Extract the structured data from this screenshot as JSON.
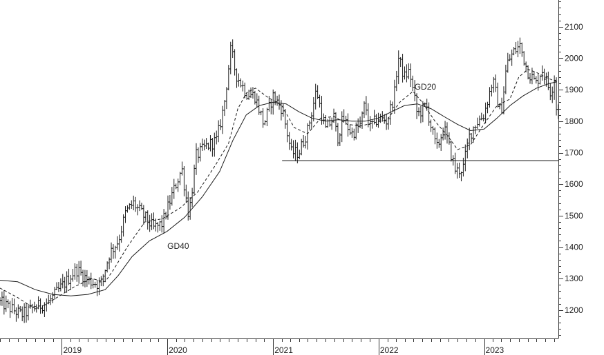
{
  "chart_data": {
    "type": "ohlc-bar",
    "title": "",
    "xlabel": "",
    "ylabel": "",
    "ylim": [
      1110,
      2185
    ],
    "y_axis_position": "right",
    "grid": false,
    "y_ticks": [
      1200,
      1300,
      1400,
      1500,
      1600,
      1700,
      1800,
      1900,
      2000,
      2100
    ],
    "x_ticks": [
      "2019",
      "2020",
      "2021",
      "2022",
      "2023"
    ],
    "x_range": [
      "2018-06-01",
      "2023-09-15"
    ],
    "x_tick_dates": [
      "2019-01-01",
      "2020-01-01",
      "2021-01-01",
      "2022-01-01",
      "2023-01-01"
    ],
    "price_keypoints": [
      [
        "2018-06-01",
        1225
      ],
      [
        "2018-08-15",
        1185
      ],
      [
        "2018-10-01",
        1210
      ],
      [
        "2018-11-15",
        1225
      ],
      [
        "2019-01-15",
        1290
      ],
      [
        "2019-02-20",
        1330
      ],
      [
        "2019-04-01",
        1295
      ],
      [
        "2019-05-15",
        1280
      ],
      [
        "2019-06-15",
        1380
      ],
      [
        "2019-07-15",
        1420
      ],
      [
        "2019-08-10",
        1510
      ],
      [
        "2019-09-05",
        1540
      ],
      [
        "2019-10-10",
        1500
      ],
      [
        "2019-11-15",
        1460
      ],
      [
        "2019-12-15",
        1475
      ],
      [
        "2020-01-15",
        1560
      ],
      [
        "2020-02-20",
        1650
      ],
      [
        "2020-03-15",
        1500
      ],
      [
        "2020-04-10",
        1690
      ],
      [
        "2020-05-15",
        1720
      ],
      [
        "2020-06-20",
        1740
      ],
      [
        "2020-07-15",
        1850
      ],
      [
        "2020-08-08",
        2030
      ],
      [
        "2020-08-25",
        1950
      ],
      [
        "2020-09-30",
        1890
      ],
      [
        "2020-10-30",
        1880
      ],
      [
        "2020-11-30",
        1790
      ],
      [
        "2020-12-31",
        1880
      ],
      [
        "2021-02-01",
        1840
      ],
      [
        "2021-03-05",
        1700
      ],
      [
        "2021-03-31",
        1700
      ],
      [
        "2021-04-30",
        1770
      ],
      [
        "2021-05-31",
        1900
      ],
      [
        "2021-06-30",
        1770
      ],
      [
        "2021-07-31",
        1815
      ],
      [
        "2021-08-10",
        1740
      ],
      [
        "2021-08-31",
        1810
      ],
      [
        "2021-09-30",
        1760
      ],
      [
        "2021-10-31",
        1790
      ],
      [
        "2021-11-15",
        1860
      ],
      [
        "2021-11-30",
        1780
      ],
      [
        "2021-12-31",
        1810
      ],
      [
        "2022-01-31",
        1800
      ],
      [
        "2022-02-28",
        1900
      ],
      [
        "2022-03-08",
        2010
      ],
      [
        "2022-03-31",
        1940
      ],
      [
        "2022-04-18",
        1960
      ],
      [
        "2022-05-15",
        1820
      ],
      [
        "2022-06-15",
        1850
      ],
      [
        "2022-07-20",
        1710
      ],
      [
        "2022-08-15",
        1780
      ],
      [
        "2022-09-25",
        1640
      ],
      [
        "2022-10-20",
        1650
      ],
      [
        "2022-11-10",
        1750
      ],
      [
        "2022-11-30",
        1790
      ],
      [
        "2022-12-31",
        1820
      ],
      [
        "2023-01-31",
        1930
      ],
      [
        "2023-02-28",
        1820
      ],
      [
        "2023-03-20",
        1980
      ],
      [
        "2023-04-13",
        2020
      ],
      [
        "2023-05-05",
        2040
      ],
      [
        "2023-05-31",
        1960
      ],
      [
        "2023-06-30",
        1920
      ],
      [
        "2023-07-20",
        1965
      ],
      [
        "2023-08-20",
        1890
      ],
      [
        "2023-08-31",
        1935
      ],
      [
        "2023-09-01",
        1940
      ],
      [
        "2023-09-05",
        1860
      ],
      [
        "2023-09-10",
        1830
      ]
    ],
    "series": [
      {
        "name": "GD20",
        "style": "dashed",
        "points": [
          [
            "2018-06-01",
            1270
          ],
          [
            "2018-08-01",
            1240
          ],
          [
            "2018-09-20",
            1210
          ],
          [
            "2018-11-01",
            1215
          ],
          [
            "2018-12-15",
            1240
          ],
          [
            "2019-02-15",
            1275
          ],
          [
            "2019-04-15",
            1300
          ],
          [
            "2019-05-31",
            1290
          ],
          [
            "2019-06-30",
            1330
          ],
          [
            "2019-08-15",
            1400
          ],
          [
            "2019-10-15",
            1480
          ],
          [
            "2019-12-15",
            1490
          ],
          [
            "2020-02-15",
            1525
          ],
          [
            "2020-04-15",
            1575
          ],
          [
            "2020-06-15",
            1660
          ],
          [
            "2020-07-31",
            1730
          ],
          [
            "2020-09-01",
            1840
          ],
          [
            "2020-10-01",
            1890
          ],
          [
            "2020-11-01",
            1905
          ],
          [
            "2020-12-15",
            1875
          ],
          [
            "2021-01-31",
            1850
          ],
          [
            "2021-03-15",
            1780
          ],
          [
            "2021-04-30",
            1760
          ],
          [
            "2021-06-15",
            1810
          ],
          [
            "2021-07-31",
            1815
          ],
          [
            "2021-09-15",
            1790
          ],
          [
            "2021-11-01",
            1785
          ],
          [
            "2021-12-15",
            1795
          ],
          [
            "2022-01-31",
            1805
          ],
          [
            "2022-03-15",
            1860
          ],
          [
            "2022-04-30",
            1895
          ],
          [
            "2022-06-01",
            1860
          ],
          [
            "2022-07-15",
            1800
          ],
          [
            "2022-08-31",
            1750
          ],
          [
            "2022-10-01",
            1710
          ],
          [
            "2022-11-15",
            1725
          ],
          [
            "2022-12-31",
            1790
          ],
          [
            "2023-02-15",
            1850
          ],
          [
            "2023-03-31",
            1870
          ],
          [
            "2023-05-01",
            1940
          ],
          [
            "2023-06-01",
            1965
          ],
          [
            "2023-07-01",
            1955
          ],
          [
            "2023-08-01",
            1940
          ],
          [
            "2023-09-10",
            1925
          ]
        ]
      },
      {
        "name": "GD40",
        "style": "solid",
        "points": [
          [
            "2018-06-01",
            1295
          ],
          [
            "2018-08-01",
            1290
          ],
          [
            "2018-10-01",
            1265
          ],
          [
            "2018-12-01",
            1250
          ],
          [
            "2019-02-01",
            1245
          ],
          [
            "2019-04-01",
            1250
          ],
          [
            "2019-05-31",
            1265
          ],
          [
            "2019-07-15",
            1310
          ],
          [
            "2019-09-01",
            1370
          ],
          [
            "2019-10-31",
            1420
          ],
          [
            "2019-12-31",
            1450
          ],
          [
            "2020-03-01",
            1495
          ],
          [
            "2020-05-01",
            1560
          ],
          [
            "2020-06-30",
            1640
          ],
          [
            "2020-08-15",
            1740
          ],
          [
            "2020-09-30",
            1820
          ],
          [
            "2020-11-15",
            1850
          ],
          [
            "2020-12-31",
            1860
          ],
          [
            "2021-02-15",
            1855
          ],
          [
            "2021-03-31",
            1830
          ],
          [
            "2021-05-15",
            1810
          ],
          [
            "2021-07-01",
            1800
          ],
          [
            "2021-08-15",
            1805
          ],
          [
            "2021-10-01",
            1800
          ],
          [
            "2021-11-15",
            1800
          ],
          [
            "2022-01-01",
            1810
          ],
          [
            "2022-02-15",
            1830
          ],
          [
            "2022-04-01",
            1850
          ],
          [
            "2022-05-15",
            1855
          ],
          [
            "2022-07-01",
            1840
          ],
          [
            "2022-08-15",
            1815
          ],
          [
            "2022-10-01",
            1790
          ],
          [
            "2022-11-15",
            1770
          ],
          [
            "2023-01-01",
            1775
          ],
          [
            "2023-02-15",
            1810
          ],
          [
            "2023-04-01",
            1850
          ],
          [
            "2023-05-15",
            1880
          ],
          [
            "2023-07-01",
            1905
          ],
          [
            "2023-08-15",
            1920
          ],
          [
            "2023-09-10",
            1925
          ]
        ]
      }
    ],
    "horizontal_lines": [
      {
        "value": 1675,
        "from": "2021-02-01"
      }
    ],
    "annotations": [
      {
        "text": "GD40",
        "x": "2020-01-01",
        "y": 1395
      },
      {
        "text": "GD20",
        "x": "2022-05-05",
        "y": 1900
      }
    ]
  }
}
